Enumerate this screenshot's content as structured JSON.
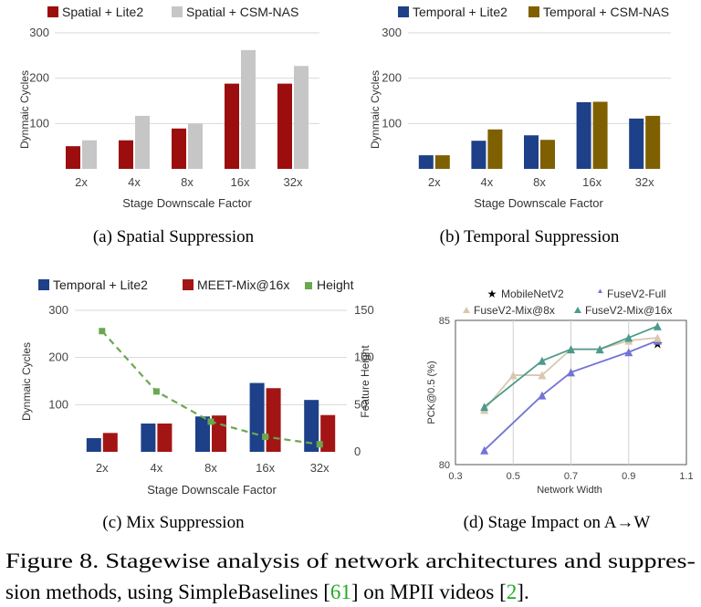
{
  "colors": {
    "spatial_lite2": "#9c0d0d",
    "spatial_csm": "#c6c6c6",
    "temporal_lite2": "#1d4088",
    "temporal_csm": "#7f6000",
    "mix_meet": "#a31515",
    "height": "#6aa84f",
    "cite": "#22aa22",
    "mobilenet": "#000000",
    "fuse_full": "#7373d6",
    "fuse_mix8": "#d8c8b0",
    "fuse_mix16": "#4d9a8c"
  },
  "chart_data": [
    {
      "id": "a",
      "type": "bar",
      "categories": [
        "2x",
        "4x",
        "8x",
        "16x",
        "32x"
      ],
      "series": [
        {
          "name": "Spatial + Lite2",
          "values": [
            50,
            63,
            89,
            188,
            188
          ]
        },
        {
          "name": "Spatial + CSM-NAS",
          "values": [
            63,
            117,
            100,
            262,
            227
          ]
        }
      ],
      "xlabel": "Stage Downscale Factor",
      "ylabel": "Dynmaic Cycles",
      "ylim": [
        0,
        300
      ],
      "yticks": [
        "100",
        "200",
        "300"
      ],
      "caption": "(a) Spatial Suppression"
    },
    {
      "id": "b",
      "type": "bar",
      "categories": [
        "2x",
        "4x",
        "8x",
        "16x",
        "32x"
      ],
      "series": [
        {
          "name": "Temporal + Lite2",
          "values": [
            30,
            62,
            74,
            147,
            111
          ]
        },
        {
          "name": "Temporal + CSM-NAS",
          "values": [
            30,
            87,
            64,
            148,
            117
          ]
        }
      ],
      "xlabel": "Stage Downscale Factor",
      "ylabel": "Dynmaic Cycles",
      "ylim": [
        0,
        300
      ],
      "yticks": [
        "100",
        "200",
        "300"
      ],
      "caption": "(b) Temporal Suppression"
    },
    {
      "id": "c",
      "type": "bar",
      "categories": [
        "2x",
        "4x",
        "8x",
        "16x",
        "32x"
      ],
      "series": [
        {
          "name": "Temporal + Lite2",
          "values": [
            29,
            60,
            75,
            146,
            110
          ]
        },
        {
          "name": "MEET-Mix@16x",
          "values": [
            40,
            60,
            77,
            135,
            78
          ]
        }
      ],
      "line_series": {
        "name": "Height",
        "values": [
          128,
          64,
          32,
          16,
          8
        ]
      },
      "xlabel": "Stage Downscale Factor",
      "ylabel": "Dynmaic Cycles",
      "y2label": "Feature Height",
      "ylim": [
        0,
        300
      ],
      "y2lim": [
        0,
        150
      ],
      "yticks": [
        "100",
        "200",
        "300"
      ],
      "y2ticks": [
        "0",
        "50",
        "100",
        "150"
      ],
      "caption": "(c) Mix Suppression"
    },
    {
      "id": "d",
      "type": "line",
      "series": [
        {
          "name": "MobileNetV2",
          "x": [
            1.0
          ],
          "y": [
            84.2
          ]
        },
        {
          "name": "FuseV2-Full",
          "x": [
            0.4,
            0.6,
            0.7,
            0.9,
            1.0
          ],
          "y": [
            80.5,
            82.4,
            83.2,
            83.9,
            84.3
          ]
        },
        {
          "name": "FuseV2-Mix@8x",
          "x": [
            0.4,
            0.5,
            0.6,
            0.7,
            0.8,
            0.9,
            1.0
          ],
          "y": [
            81.9,
            83.1,
            83.1,
            84.0,
            84.0,
            84.3,
            84.4
          ]
        },
        {
          "name": "FuseV2-Mix@16x",
          "x": [
            0.4,
            0.6,
            0.7,
            0.8,
            0.9,
            1.0
          ],
          "y": [
            82.0,
            83.6,
            84.0,
            84.0,
            84.4,
            84.8
          ]
        }
      ],
      "xlabel": "Network Width",
      "ylabel": "PCK@0.5 (%)",
      "y2label": "",
      "xlim": [
        0.3,
        1.1
      ],
      "ylim": [
        80,
        85
      ],
      "xticks": [
        "0.3",
        "0.5",
        "0.7",
        "0.9",
        "1.1"
      ],
      "yticks": [
        "80",
        "85"
      ],
      "caption": "(d) Stage Impact on A→W"
    }
  ],
  "figure_caption": {
    "line1": "Figure 8. Stagewise analysis of network architectures and suppres-",
    "line2_pre": "sion methods, using SimpleBaselines [",
    "cite1": "61",
    "line2_mid": "] on MPII videos [",
    "cite2": "2",
    "line2_post": "]."
  }
}
